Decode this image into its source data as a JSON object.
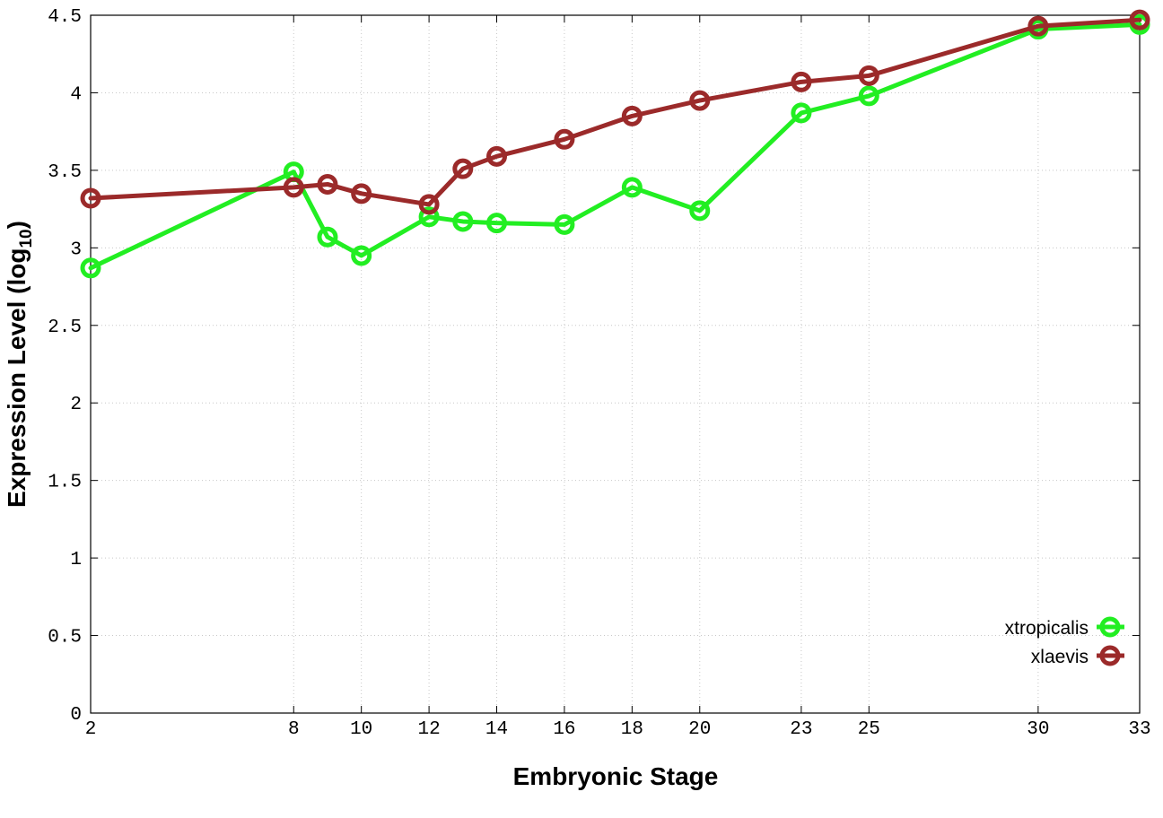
{
  "chart_data": {
    "type": "line",
    "title": "",
    "xlabel": "Embryonic Stage",
    "ylabel_main": "Expression Level (log",
    "ylabel_sub": "10",
    "ylabel_close": ")",
    "x_ticks": [
      2,
      8,
      10,
      12,
      14,
      16,
      18,
      20,
      23,
      25,
      30,
      33
    ],
    "y_ticks": [
      "0",
      "0.5",
      "1",
      "1.5",
      "2",
      "2.5",
      "3",
      "3.5",
      "4",
      "4.5"
    ],
    "xlim": [
      2,
      33
    ],
    "ylim": [
      0,
      4.5
    ],
    "grid": true,
    "legend_position": "bottom-right",
    "series": [
      {
        "name": "xtropicalis",
        "color": "#22ee22",
        "x": [
          2,
          8,
          9,
          10,
          12,
          13,
          14,
          16,
          18,
          20,
          23,
          25,
          30,
          33
        ],
        "y": [
          2.87,
          3.49,
          3.07,
          2.95,
          3.2,
          3.17,
          3.16,
          3.15,
          3.39,
          3.24,
          3.87,
          3.98,
          4.41,
          4.44
        ]
      },
      {
        "name": "xlaevis",
        "color": "#9b2a2a",
        "x": [
          2,
          8,
          9,
          10,
          12,
          13,
          14,
          16,
          18,
          20,
          23,
          25,
          30,
          33
        ],
        "y": [
          3.32,
          3.39,
          3.41,
          3.35,
          3.28,
          3.51,
          3.59,
          3.7,
          3.85,
          3.95,
          4.07,
          4.11,
          4.43,
          4.47
        ]
      }
    ]
  }
}
